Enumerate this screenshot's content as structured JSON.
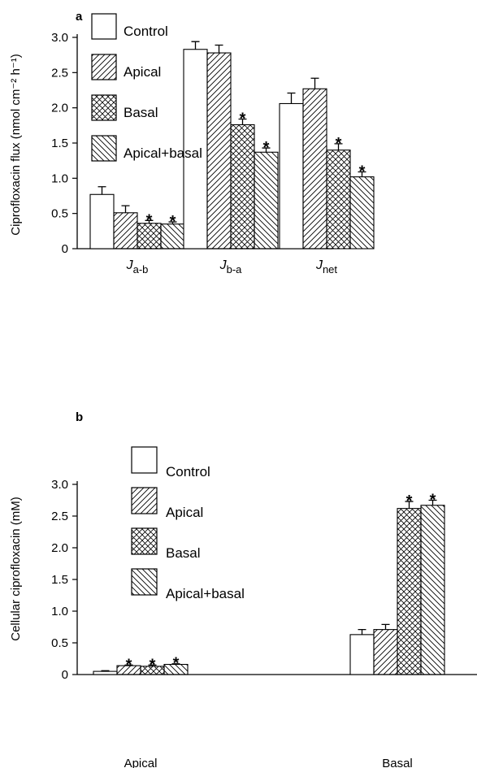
{
  "legend": [
    {
      "label": "Control",
      "pattern": "none"
    },
    {
      "label": "Apical",
      "pattern": "diag-fwd"
    },
    {
      "label": "Basal",
      "pattern": "crosshatch"
    },
    {
      "label": "Apical+basal",
      "pattern": "diag-back"
    }
  ],
  "chart_data": [
    {
      "type": "bar",
      "panel_label": "a",
      "ylabel": "Ciprofloxacin flux (nmol cm⁻² h⁻¹)",
      "ylim": [
        0,
        3.0
      ],
      "yticks": [
        "0",
        "0.5",
        "1.0",
        "1.5",
        "2.0",
        "2.5",
        "3.0"
      ],
      "categories": [
        {
          "main": "J",
          "sub": "a-b"
        },
        {
          "main": "J",
          "sub": "b-a"
        },
        {
          "main": "J",
          "sub": "net"
        }
      ],
      "series": [
        {
          "name": "Control",
          "values": [
            0.77,
            2.83,
            2.06
          ],
          "errors": [
            0.11,
            0.11,
            0.15
          ],
          "star": [
            false,
            false,
            false
          ]
        },
        {
          "name": "Apical",
          "values": [
            0.51,
            2.78,
            2.27
          ],
          "errors": [
            0.1,
            0.11,
            0.15
          ],
          "star": [
            false,
            false,
            false
          ]
        },
        {
          "name": "Basal",
          "values": [
            0.36,
            1.76,
            1.4
          ],
          "errors": [
            0.04,
            0.08,
            0.09
          ],
          "star": [
            true,
            true,
            true
          ]
        },
        {
          "name": "Apical+basal",
          "values": [
            0.35,
            1.37,
            1.02
          ],
          "errors": [
            0.03,
            0.06,
            0.07
          ],
          "star": [
            true,
            true,
            true
          ]
        }
      ],
      "star_symbol": "*",
      "legend_placement": "top-left",
      "grid": false
    },
    {
      "type": "bar",
      "panel_label": "b",
      "ylabel": "Cellular ciprofloxacin (mM)",
      "ylim": [
        0,
        3.0
      ],
      "yticks": [
        "0",
        "0.5",
        "1.0",
        "1.5",
        "2.0",
        "2.5",
        "3.0"
      ],
      "categories": [
        {
          "main": "Apical",
          "sub": ""
        },
        {
          "main": "Basal",
          "sub": ""
        }
      ],
      "series": [
        {
          "name": "Control",
          "values": [
            0.05,
            0.63
          ],
          "errors": [
            0.01,
            0.08
          ],
          "star": [
            false,
            false
          ]
        },
        {
          "name": "Apical",
          "values": [
            0.14,
            0.71
          ],
          "errors": [
            0.01,
            0.08
          ],
          "star": [
            true,
            false
          ]
        },
        {
          "name": "Basal",
          "values": [
            0.13,
            2.62
          ],
          "errors": [
            0.02,
            0.11
          ],
          "star": [
            true,
            true
          ]
        },
        {
          "name": "Apical+basal",
          "values": [
            0.16,
            2.67
          ],
          "errors": [
            0.01,
            0.08
          ],
          "star": [
            true,
            true
          ]
        }
      ],
      "star_symbol": "*",
      "legend_placement": "top-left",
      "grid": false
    }
  ]
}
